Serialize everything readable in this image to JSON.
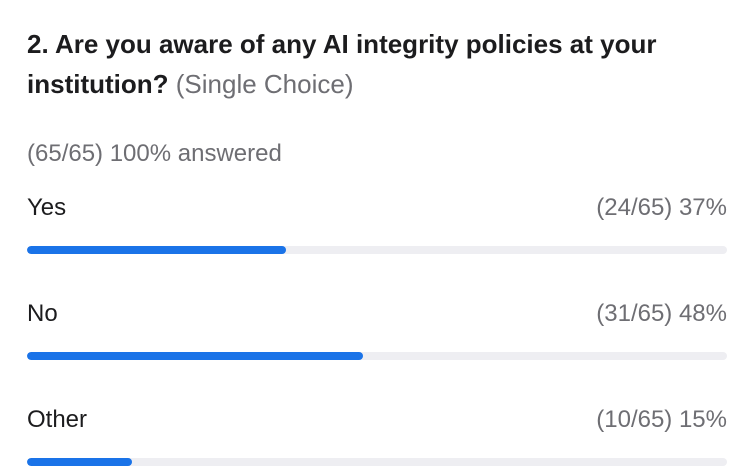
{
  "poll": {
    "question_number_and_text": "2. Are you aware of any AI integrity policies at your institution?",
    "question_type": "(Single Choice)",
    "answered_summary": "(65/65) 100% answered",
    "accent_color": "#1a73e8",
    "track_color": "#eeeef2",
    "options": [
      {
        "label": "Yes",
        "stat": "(24/65) 37%",
        "fraction": 0.37
      },
      {
        "label": "No",
        "stat": "(31/65) 48%",
        "fraction": 0.48
      },
      {
        "label": "Other",
        "stat": "(10/65) 15%",
        "fraction": 0.15
      }
    ]
  }
}
